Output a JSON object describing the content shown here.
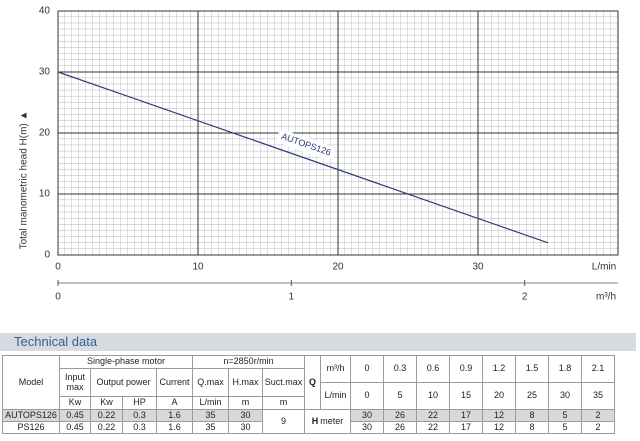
{
  "chart_data": {
    "type": "line",
    "y_label": "Total manometric head H(m) ▲",
    "x_label": "L/min",
    "x2_label": "m³/h",
    "xlim": [
      0,
      40
    ],
    "xticks": [
      0,
      10,
      20,
      30
    ],
    "x2lim": [
      0,
      2.4
    ],
    "x2ticks": [
      0,
      1,
      2
    ],
    "ylim": [
      0,
      40
    ],
    "yticks": [
      0,
      10,
      20,
      30,
      40
    ],
    "grid": true,
    "series": [
      {
        "name": "AUTOPS126",
        "color": "#2b3f7e",
        "x": [
          0,
          35
        ],
        "values": [
          30,
          2
        ]
      }
    ]
  },
  "table": {
    "title": "Technical data",
    "model_header": "Model",
    "motor_header": "Single-phase motor",
    "speed_header": "n=2850r/min",
    "columns": [
      "Input max",
      "Output power",
      "Current",
      "Q.max",
      "H.max",
      "Suct.max"
    ],
    "units": [
      "Kw",
      "Kw",
      "HP",
      "A",
      "L/min",
      "m",
      "m"
    ],
    "q_label": "Q",
    "q_units": [
      "m³/h",
      "L/min"
    ],
    "q_m3h": [
      0,
      0.3,
      0.6,
      0.9,
      1.2,
      1.5,
      1.8,
      2.1
    ],
    "q_lmin": [
      0,
      5,
      10,
      15,
      20,
      25,
      30,
      35
    ],
    "h_label": "H",
    "h_unit": "meter",
    "suction": 9,
    "rows": [
      {
        "model": "AUTOPS126",
        "values": [
          0.45,
          0.22,
          0.3,
          1.6,
          35,
          30
        ],
        "h": [
          30,
          26,
          22,
          17,
          12,
          8,
          5,
          2
        ]
      },
      {
        "model": "PS126",
        "values": [
          0.45,
          0.22,
          0.3,
          1.6,
          35,
          30
        ],
        "h": [
          30,
          26,
          22,
          17,
          12,
          8,
          5,
          2
        ]
      }
    ]
  }
}
